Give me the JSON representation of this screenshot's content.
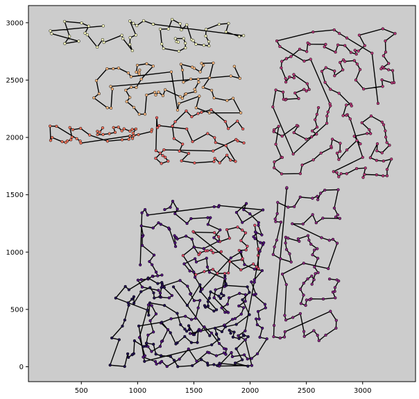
{
  "chart_data": {
    "type": "scatter",
    "title": "",
    "xlabel": "",
    "ylabel": "",
    "xlim": [
      30,
      3470
    ],
    "ylim": [
      -130,
      3150
    ],
    "xticks": [
      500,
      1000,
      1500,
      2000,
      2500,
      3000
    ],
    "yticks": [
      0,
      500,
      1000,
      1500,
      2000,
      2500,
      3000
    ],
    "grid": false,
    "background": "#cccccc",
    "path_color": "#000000",
    "colormap": "magma",
    "point_count_estimate": 1000,
    "clusters": [
      {
        "region": "top-strip",
        "x": [
          200,
          1950
        ],
        "y": [
          2750,
          3030
        ],
        "color": "#fcfdbf"
      },
      {
        "region": "upper-left-peach",
        "x": [
          600,
          1950
        ],
        "y": [
          2200,
          2650
        ],
        "color": "#febb81"
      },
      {
        "region": "left-salmon-band",
        "x": [
          180,
          1150
        ],
        "y": [
          1950,
          2100
        ],
        "color": "#f8765c"
      },
      {
        "region": "center-pink",
        "x": [
          1150,
          1950
        ],
        "y": [
          1750,
          2250
        ],
        "color": "#f1605d"
      },
      {
        "region": "center-magenta",
        "x": [
          1400,
          2100
        ],
        "y": [
          800,
          1250
        ],
        "color": "#de4968"
      },
      {
        "region": "right-upper-magenta",
        "x": [
          2200,
          3300
        ],
        "y": [
          1650,
          2950
        ],
        "color": "#b73779"
      },
      {
        "region": "right-mid-magenta",
        "x": [
          2200,
          2800
        ],
        "y": [
          200,
          1600
        ],
        "color": "#8c2981"
      },
      {
        "region": "lower-purple",
        "x": [
          1000,
          2150
        ],
        "y": [
          0,
          1450
        ],
        "color": "#51127c"
      },
      {
        "region": "lower-dark",
        "x": [
          750,
          2000
        ],
        "y": [
          0,
          800
        ],
        "color": "#221150"
      }
    ]
  }
}
